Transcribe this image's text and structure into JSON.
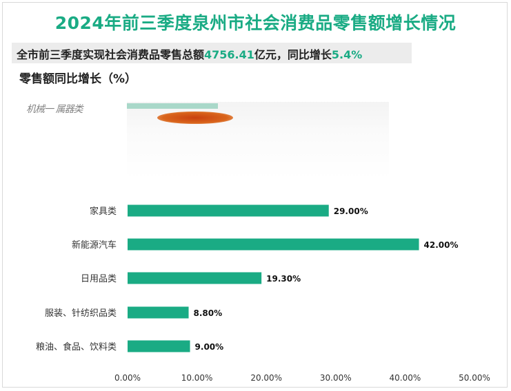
{
  "title": "2024年前三季度泉州市社会消费品零售额增长情况",
  "subtitle": {
    "prefix": "全市前三季度实现社会消费品零售总额",
    "total_value": "4756.41",
    "mid": "亿元，同比增长",
    "growth_value": "5.4%"
  },
  "unit_label": "零售额同比增长（%）",
  "artifact_label": "机械一 属器类",
  "colors": {
    "accent": "#1aab84",
    "bar": "#1aab84"
  },
  "chart_data": {
    "type": "bar",
    "orientation": "horizontal",
    "categories": [
      "家具类",
      "新能源汽车",
      "日用品类",
      "服装、针纺织品类",
      "粮油、食品、饮料类"
    ],
    "values": [
      29.0,
      42.0,
      19.3,
      8.8,
      9.0
    ],
    "value_labels": [
      "29.00%",
      "42.00%",
      "19.30%",
      "8.80%",
      "9.00%"
    ],
    "xlim": [
      0,
      50
    ],
    "xticks": [
      "0.00%",
      "10.00%",
      "20.00%",
      "30.00%",
      "40.00%",
      "50.00%"
    ],
    "grid": false,
    "legend": "none"
  }
}
